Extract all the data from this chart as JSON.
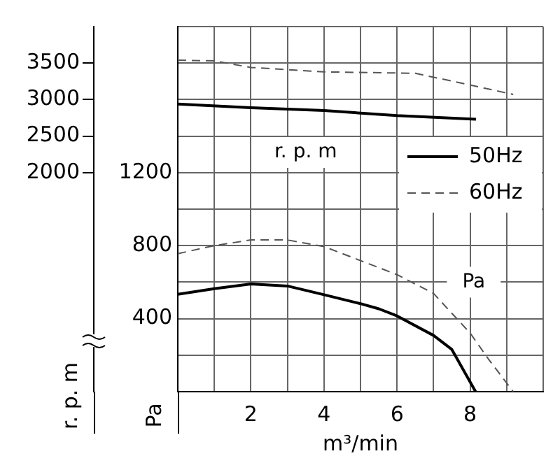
{
  "chart_data": {
    "type": "line",
    "xlabel": "m³/min",
    "ylabel": "Pa",
    "y2label": "r. p. m",
    "xlim": [
      0,
      10
    ],
    "xticks": [
      {
        "value": 0,
        "label": null
      },
      {
        "value": 1,
        "label": null
      },
      2,
      {
        "value": 3,
        "label": null
      },
      4,
      {
        "value": 5,
        "label": null
      },
      6,
      {
        "value": 7,
        "label": null
      },
      8,
      {
        "value": 9,
        "label": null
      },
      {
        "value": 10,
        "label": null
      }
    ],
    "ylim": [
      0,
      2000
    ],
    "yticks": [
      {
        "value": 0,
        "label": null
      },
      {
        "value": 200,
        "label": null
      },
      400,
      {
        "value": 600,
        "label": null
      },
      800,
      {
        "value": 1000,
        "label": null
      },
      1200,
      {
        "value": 1400,
        "label": null
      },
      {
        "value": 1600,
        "label": null
      },
      {
        "value": 1800,
        "label": null
      },
      {
        "value": 2000,
        "label": null
      }
    ],
    "y2lim": [
      -1000,
      4000
    ],
    "y2ticks": [
      2000,
      2500,
      3000,
      3500
    ],
    "grid": true,
    "legend": "top right",
    "marker": "none",
    "annotations": [
      "r. p. m",
      "Pa"
    ],
    "series": [
      {
        "name": "50Hz",
        "color": "#000000",
        "line_style": "solid",
        "x": [
          0,
          1,
          2,
          3,
          4,
          5,
          5.5,
          6,
          7,
          7.5,
          8.15
        ],
        "values": [
          533,
          564,
          590,
          579,
          531,
          482,
          454,
          415,
          308,
          231,
          0
        ]
      },
      {
        "name": "60Hz",
        "color": "#555555",
        "line_style": "dashed",
        "x": [
          0,
          1,
          2,
          3,
          4,
          5,
          6,
          7,
          8,
          8.5,
          9.18
        ],
        "values": [
          756,
          800,
          831,
          831,
          795,
          718,
          641,
          538,
          321,
          179,
          0
        ]
      },
      {
        "color": "#000000",
        "line_style": "solid",
        "axis": "y2",
        "x": [
          0,
          2,
          4,
          6,
          8.16
        ],
        "values": [
          2940,
          2890,
          2850,
          2780,
          2730
        ]
      },
      {
        "color": "#555555",
        "line_style": "dashed",
        "axis": "y2",
        "x": [
          0,
          1,
          2,
          4,
          6.5,
          8,
          9.18
        ],
        "values": [
          3540,
          3530,
          3440,
          3380,
          3360,
          3200,
          3070
        ]
      }
    ]
  }
}
